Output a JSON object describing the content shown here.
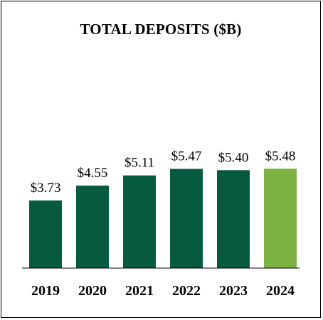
{
  "chart_data": {
    "type": "bar",
    "title": "TOTAL DEPOSITS ($B)",
    "categories": [
      "2019",
      "2020",
      "2021",
      "2022",
      "2023",
      "2024"
    ],
    "values": [
      3.73,
      4.55,
      5.11,
      5.47,
      5.4,
      5.48
    ],
    "data_labels": [
      "$3.73",
      "$4.55",
      "$5.11",
      "$5.47",
      "$5.40",
      "$5.48"
    ],
    "xlabel": "",
    "ylabel": "",
    "ylim": [
      0,
      6.0
    ],
    "grid": false,
    "colors": {
      "default": "#055a40",
      "highlight": "#7cb342"
    },
    "highlight_index": 5
  }
}
